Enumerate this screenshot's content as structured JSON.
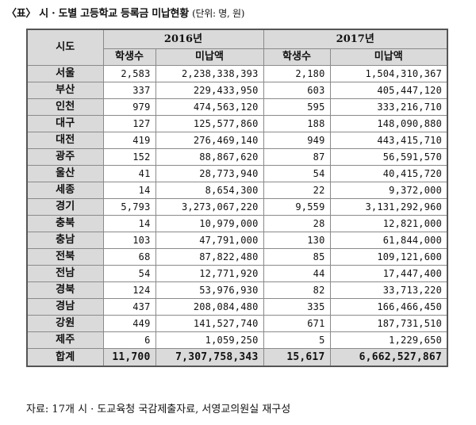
{
  "title": "〈표〉 시 · 도별 고등학교 등록금 미납현황",
  "unit": "(단위: 명, 원)",
  "header": {
    "region": "시도",
    "year1": "2016년",
    "year2": "2017년",
    "students": "학생수",
    "unpaid": "미납액"
  },
  "rows": [
    {
      "region": "서울",
      "s2016": "2,583",
      "u2016": "2,238,338,393",
      "s2017": "2,180",
      "u2017": "1,504,310,367"
    },
    {
      "region": "부산",
      "s2016": "337",
      "u2016": "229,433,950",
      "s2017": "603",
      "u2017": "405,447,120"
    },
    {
      "region": "인천",
      "s2016": "979",
      "u2016": "474,563,120",
      "s2017": "595",
      "u2017": "333,216,710"
    },
    {
      "region": "대구",
      "s2016": "127",
      "u2016": "125,577,860",
      "s2017": "188",
      "u2017": "148,090,880"
    },
    {
      "region": "대전",
      "s2016": "419",
      "u2016": "276,469,140",
      "s2017": "949",
      "u2017": "443,415,710"
    },
    {
      "region": "광주",
      "s2016": "152",
      "u2016": "88,867,620",
      "s2017": "87",
      "u2017": "56,591,570"
    },
    {
      "region": "울산",
      "s2016": "41",
      "u2016": "28,773,940",
      "s2017": "54",
      "u2017": "40,415,720"
    },
    {
      "region": "세종",
      "s2016": "14",
      "u2016": "8,654,300",
      "s2017": "22",
      "u2017": "9,372,000"
    },
    {
      "region": "경기",
      "s2016": "5,793",
      "u2016": "3,273,067,220",
      "s2017": "9,559",
      "u2017": "3,131,292,960"
    },
    {
      "region": "충북",
      "s2016": "14",
      "u2016": "10,979,000",
      "s2017": "28",
      "u2017": "12,821,000"
    },
    {
      "region": "충남",
      "s2016": "103",
      "u2016": "47,791,000",
      "s2017": "130",
      "u2017": "61,844,000"
    },
    {
      "region": "전북",
      "s2016": "68",
      "u2016": "87,822,480",
      "s2017": "85",
      "u2017": "109,121,600"
    },
    {
      "region": "전남",
      "s2016": "54",
      "u2016": "12,771,920",
      "s2017": "44",
      "u2017": "17,447,400"
    },
    {
      "region": "경북",
      "s2016": "124",
      "u2016": "53,976,930",
      "s2017": "82",
      "u2017": "33,713,220"
    },
    {
      "region": "경남",
      "s2016": "437",
      "u2016": "208,084,480",
      "s2017": "335",
      "u2017": "166,466,450"
    },
    {
      "region": "강원",
      "s2016": "449",
      "u2016": "141,527,740",
      "s2017": "671",
      "u2017": "187,731,510"
    },
    {
      "region": "제주",
      "s2016": "6",
      "u2016": "1,059,250",
      "s2017": "5",
      "u2017": "1,229,650"
    }
  ],
  "total": {
    "region": "합계",
    "s2016": "11,700",
    "u2016": "7,307,758,343",
    "s2017": "15,617",
    "u2017": "6,662,527,867"
  },
  "source": "자료: 17개 시 · 도교육청 국감제출자료, 서영교의원실 재구성"
}
